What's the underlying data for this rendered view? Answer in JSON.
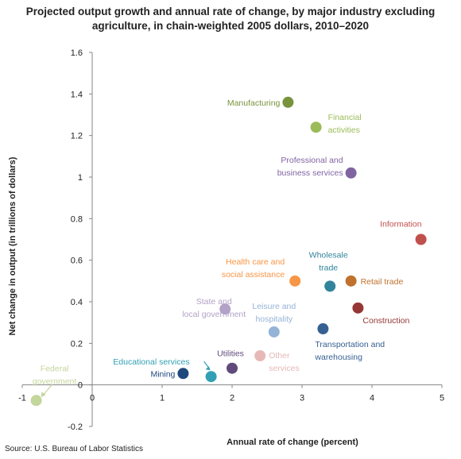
{
  "title_line1": "Projected output growth and annual rate of change, by major industry excluding",
  "title_line2": "agriculture, in chain-weighted 2005 dollars, 2010–2020",
  "source": "Source: U.S. Bureau of Labor Statistics",
  "chart_data": {
    "type": "scatter",
    "title": "Projected output growth and annual rate of change, by major industry excluding agriculture, in chain-weighted 2005 dollars, 2010–2020",
    "xlabel": "Annual rate of change  (percent)",
    "ylabel": "Net change in output (in trillions of dollars)",
    "xlim": [
      -1,
      5
    ],
    "ylim": [
      -0.2,
      1.6
    ],
    "x_ticks": [
      "-1",
      "0",
      "1",
      "2",
      "3",
      "4",
      "5"
    ],
    "y_ticks": [
      "-0.2",
      "0",
      "0.2",
      "0.4",
      "0.6",
      "0.8",
      "1",
      "1.2",
      "1.4",
      "1.6"
    ],
    "grid": false,
    "legend": "none",
    "points": [
      {
        "label": [
          "Manufacturing"
        ],
        "x": 2.8,
        "y": 1.36,
        "color": "#77933c"
      },
      {
        "label": [
          "Financial",
          "activities"
        ],
        "x": 3.2,
        "y": 1.24,
        "color": "#9bbb59"
      },
      {
        "label": [
          "Professional and",
          "business services"
        ],
        "x": 3.7,
        "y": 1.02,
        "color": "#8064a2"
      },
      {
        "label": [
          "Information"
        ],
        "x": 4.7,
        "y": 0.7,
        "color": "#c0504d"
      },
      {
        "label": [
          "Health care and",
          "social assistance"
        ],
        "x": 2.9,
        "y": 0.5,
        "color": "#f79646"
      },
      {
        "label": [
          "Wholesale",
          "trade"
        ],
        "x": 3.4,
        "y": 0.475,
        "color": "#31849b"
      },
      {
        "label": [
          "Retail trade"
        ],
        "x": 3.7,
        "y": 0.5,
        "color": "#c0712e"
      },
      {
        "label": [
          "Construction"
        ],
        "x": 3.8,
        "y": 0.37,
        "color": "#953735"
      },
      {
        "label": [
          "State and",
          "local government"
        ],
        "x": 1.9,
        "y": 0.365,
        "color": "#b3a2c7"
      },
      {
        "label": [
          "Leisure and",
          "hospitality"
        ],
        "x": 2.6,
        "y": 0.255,
        "color": "#95b3d7"
      },
      {
        "label": [
          "Transportation and",
          "warehousing"
        ],
        "x": 3.3,
        "y": 0.27,
        "color": "#376092"
      },
      {
        "label": [
          "Other",
          "services"
        ],
        "x": 2.4,
        "y": 0.14,
        "color": "#e6b9b8"
      },
      {
        "label": [
          "Utilities"
        ],
        "x": 2.0,
        "y": 0.08,
        "color": "#604a7b"
      },
      {
        "label": [
          "Educational services"
        ],
        "x": 1.7,
        "y": 0.04,
        "color": "#31a0b4"
      },
      {
        "label": [
          "Mining"
        ],
        "x": 1.3,
        "y": 0.055,
        "color": "#1f497d"
      },
      {
        "label": [
          "Federal",
          "government"
        ],
        "x": -0.8,
        "y": -0.075,
        "color": "#c3d69b"
      }
    ]
  }
}
